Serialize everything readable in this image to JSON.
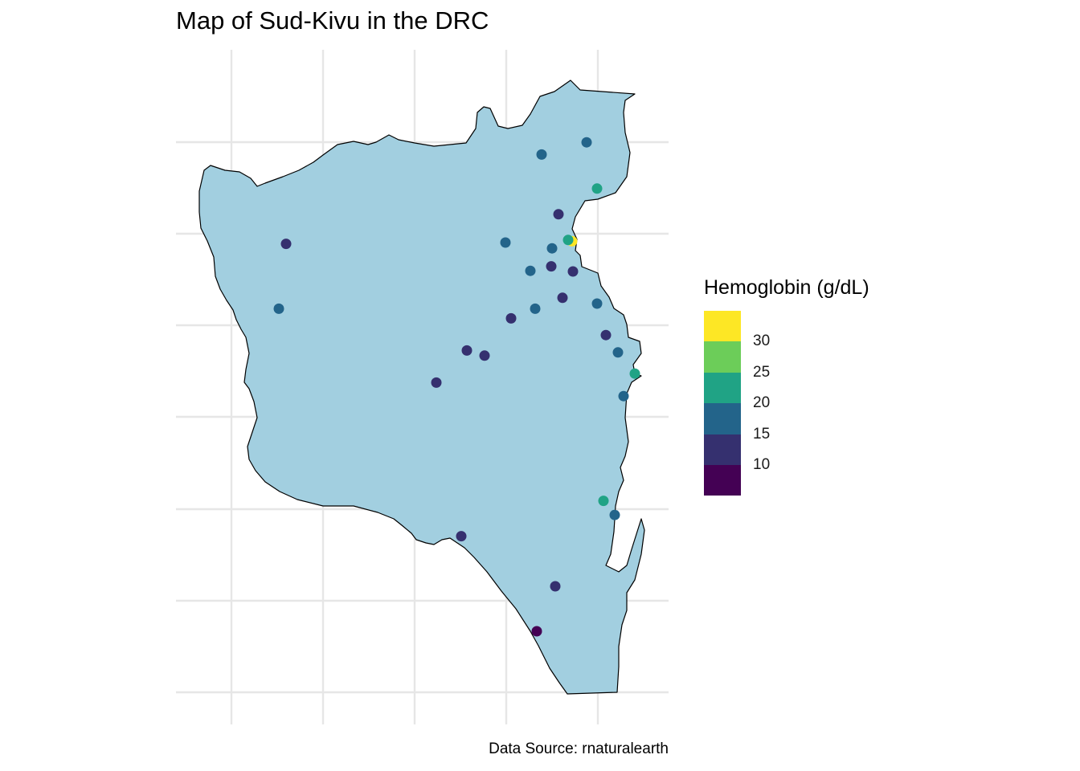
{
  "title": "Map of Sud-Kivu in the DRC",
  "caption": "Data Source: rnaturalearth",
  "colors": {
    "region_fill": "#a2cfe0",
    "region_stroke": "#000000",
    "grid": "#e6e6e6",
    "background": "#ffffff"
  },
  "legend": {
    "title": "Hemoglobin (g/dL)",
    "labels": [
      "30",
      "25",
      "20",
      "15",
      "10"
    ],
    "colors": [
      "#fde725",
      "#6ccd59",
      "#20a385",
      "#23648a",
      "#35306f",
      "#440154"
    ]
  },
  "chart_data": {
    "type": "scatter",
    "points": [
      {
        "x": 0.674,
        "y": 0.163,
        "value": 17
      },
      {
        "x": 0.73,
        "y": 0.144,
        "value": 17
      },
      {
        "x": 0.743,
        "y": 0.216,
        "value": 22
      },
      {
        "x": 0.695,
        "y": 0.256,
        "value": 12
      },
      {
        "x": 0.356,
        "y": 0.302,
        "value": 12
      },
      {
        "x": 0.629,
        "y": 0.3,
        "value": 17
      },
      {
        "x": 0.687,
        "y": 0.309,
        "value": 17
      },
      {
        "x": 0.712,
        "y": 0.298,
        "value": 32
      },
      {
        "x": 0.707,
        "y": 0.296,
        "value": 22
      },
      {
        "x": 0.66,
        "y": 0.344,
        "value": 17
      },
      {
        "x": 0.686,
        "y": 0.337,
        "value": 12
      },
      {
        "x": 0.713,
        "y": 0.345,
        "value": 12
      },
      {
        "x": 0.347,
        "y": 0.403,
        "value": 17
      },
      {
        "x": 0.666,
        "y": 0.403,
        "value": 17
      },
      {
        "x": 0.7,
        "y": 0.386,
        "value": 12
      },
      {
        "x": 0.743,
        "y": 0.395,
        "value": 17
      },
      {
        "x": 0.636,
        "y": 0.418,
        "value": 12
      },
      {
        "x": 0.754,
        "y": 0.444,
        "value": 12
      },
      {
        "x": 0.581,
        "y": 0.468,
        "value": 12
      },
      {
        "x": 0.603,
        "y": 0.476,
        "value": 12
      },
      {
        "x": 0.769,
        "y": 0.471,
        "value": 17
      },
      {
        "x": 0.79,
        "y": 0.504,
        "value": 22
      },
      {
        "x": 0.543,
        "y": 0.518,
        "value": 12
      },
      {
        "x": 0.776,
        "y": 0.539,
        "value": 17
      },
      {
        "x": 0.751,
        "y": 0.702,
        "value": 22
      },
      {
        "x": 0.765,
        "y": 0.724,
        "value": 17
      },
      {
        "x": 0.574,
        "y": 0.757,
        "value": 12
      },
      {
        "x": 0.691,
        "y": 0.835,
        "value": 12
      },
      {
        "x": 0.668,
        "y": 0.905,
        "value": 6
      }
    ]
  }
}
